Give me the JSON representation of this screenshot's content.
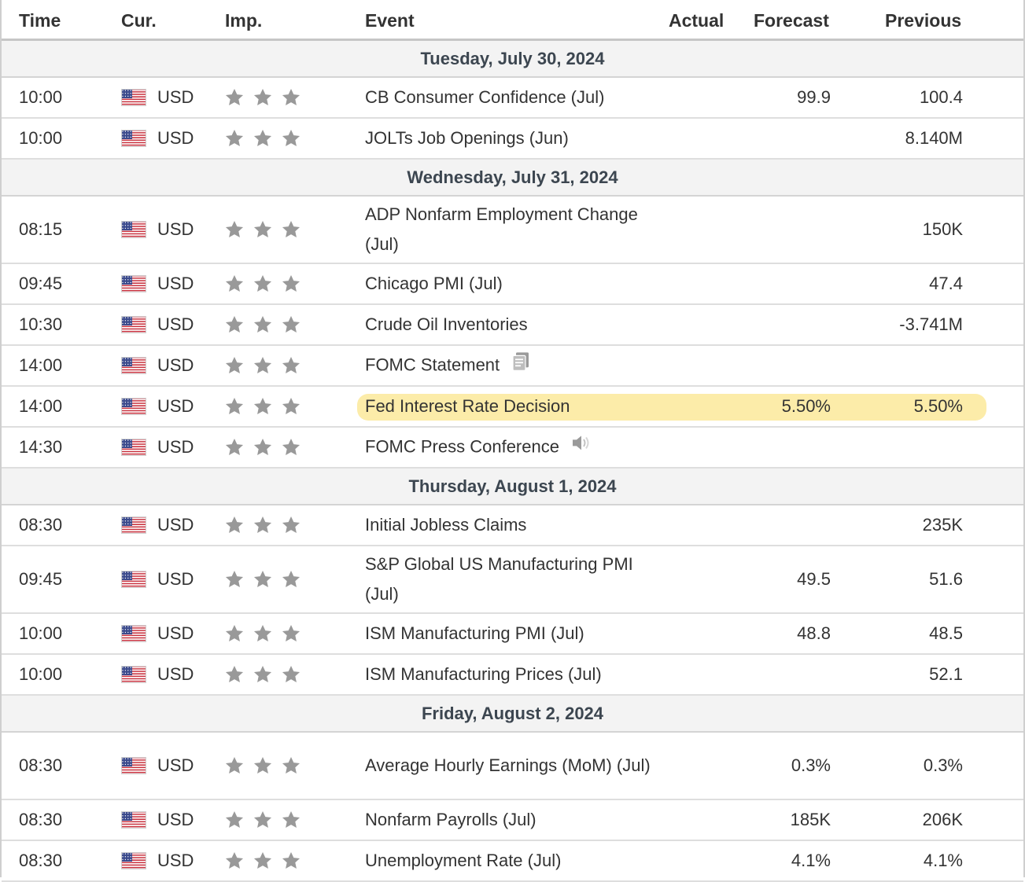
{
  "columns": {
    "time": "Time",
    "currency": "Cur.",
    "importance": "Imp.",
    "event": "Event",
    "actual": "Actual",
    "forecast": "Forecast",
    "previous": "Previous"
  },
  "colors": {
    "highlight": "#fbe99a",
    "star": "#999999",
    "date_row_bg": "#f3f3f3"
  },
  "days": [
    {
      "date": "Tuesday, July 30, 2024",
      "events": [
        {
          "time": "10:00",
          "currency": "USD",
          "importance": 3,
          "event": "CB Consumer Confidence (Jul)",
          "actual": "",
          "forecast": "99.9",
          "previous": "100.4",
          "icon": ""
        },
        {
          "time": "10:00",
          "currency": "USD",
          "importance": 3,
          "event": "JOLTs Job Openings (Jun)",
          "actual": "",
          "forecast": "",
          "previous": "8.140M",
          "icon": ""
        }
      ]
    },
    {
      "date": "Wednesday, July 31, 2024",
      "events": [
        {
          "time": "08:15",
          "currency": "USD",
          "importance": 3,
          "event": "ADP Nonfarm Employment Change (Jul)",
          "actual": "",
          "forecast": "",
          "previous": "150K",
          "icon": ""
        },
        {
          "time": "09:45",
          "currency": "USD",
          "importance": 3,
          "event": "Chicago PMI (Jul)",
          "actual": "",
          "forecast": "",
          "previous": "47.4",
          "icon": ""
        },
        {
          "time": "10:30",
          "currency": "USD",
          "importance": 3,
          "event": "Crude Oil Inventories",
          "actual": "",
          "forecast": "",
          "previous": "-3.741M",
          "icon": ""
        },
        {
          "time": "14:00",
          "currency": "USD",
          "importance": 3,
          "event": "FOMC Statement",
          "actual": "",
          "forecast": "",
          "previous": "",
          "icon": "document-icon"
        },
        {
          "time": "14:00",
          "currency": "USD",
          "importance": 3,
          "event": "Fed Interest Rate Decision",
          "actual": "",
          "forecast": "5.50%",
          "previous": "5.50%",
          "icon": "",
          "highlighted": true
        },
        {
          "time": "14:30",
          "currency": "USD",
          "importance": 3,
          "event": "FOMC Press Conference",
          "actual": "",
          "forecast": "",
          "previous": "",
          "icon": "speaker-icon"
        }
      ]
    },
    {
      "date": "Thursday, August 1, 2024",
      "events": [
        {
          "time": "08:30",
          "currency": "USD",
          "importance": 3,
          "event": "Initial Jobless Claims",
          "actual": "",
          "forecast": "",
          "previous": "235K",
          "icon": ""
        },
        {
          "time": "09:45",
          "currency": "USD",
          "importance": 3,
          "event": "S&P Global US Manufacturing PMI (Jul)",
          "actual": "",
          "forecast": "49.5",
          "previous": "51.6",
          "icon": ""
        },
        {
          "time": "10:00",
          "currency": "USD",
          "importance": 3,
          "event": "ISM Manufacturing PMI (Jul)",
          "actual": "",
          "forecast": "48.8",
          "previous": "48.5",
          "icon": ""
        },
        {
          "time": "10:00",
          "currency": "USD",
          "importance": 3,
          "event": "ISM Manufacturing Prices (Jul)",
          "actual": "",
          "forecast": "",
          "previous": "52.1",
          "icon": ""
        }
      ]
    },
    {
      "date": "Friday, August 2, 2024",
      "events": [
        {
          "time": "08:30",
          "currency": "USD",
          "importance": 3,
          "event": "Average Hourly Earnings (MoM) (Jul)",
          "actual": "",
          "forecast": "0.3%",
          "previous": "0.3%",
          "icon": ""
        },
        {
          "time": "08:30",
          "currency": "USD",
          "importance": 3,
          "event": "Nonfarm Payrolls (Jul)",
          "actual": "",
          "forecast": "185K",
          "previous": "206K",
          "icon": ""
        },
        {
          "time": "08:30",
          "currency": "USD",
          "importance": 3,
          "event": "Unemployment Rate (Jul)",
          "actual": "",
          "forecast": "4.1%",
          "previous": "4.1%",
          "icon": ""
        }
      ]
    }
  ]
}
